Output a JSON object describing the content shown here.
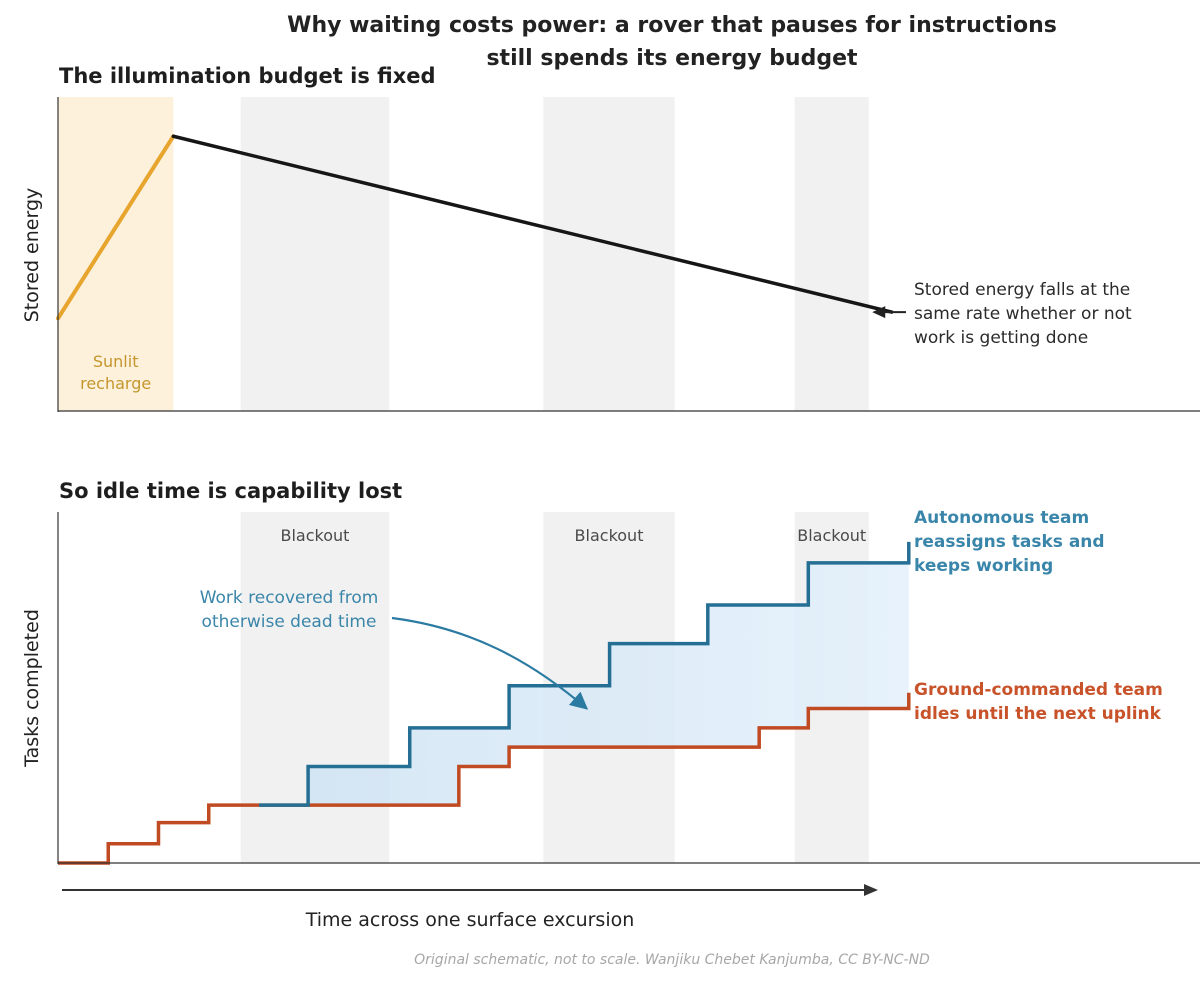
{
  "figure": {
    "title_line1": "Why waiting costs power: a rover that pauses for instructions",
    "title_line2": "still spends its energy budget",
    "credit": "Original schematic, not to scale. Wanjiku Chebet Kanjumba, CC BY-NC-ND",
    "x_axis_label": "Time across one surface excursion"
  },
  "colors": {
    "sunlit": "#e7a52d",
    "sunlit_band": "#fdf1dc",
    "energy_line": "#161616",
    "autonomous": "#256f94",
    "ground": "#c04a22",
    "gap_fill": "#d8e9f7",
    "blackout_band": "#eeeeee"
  },
  "chart_data": [
    {
      "type": "line",
      "panel_title": "The illumination budget is fixed",
      "ylabel": "Stored energy",
      "xlim": [
        0,
        100
      ],
      "ylim": [
        0,
        100
      ],
      "bands": [
        {
          "name": "Sunlit recharge",
          "x": [
            0,
            10.1
          ],
          "kind": "sunlit",
          "label_lines": [
            "Sunlit",
            "recharge"
          ]
        },
        {
          "name": "Blackout",
          "x": [
            16,
            29
          ],
          "kind": "blackout"
        },
        {
          "name": "Blackout",
          "x": [
            42.5,
            54
          ],
          "kind": "blackout"
        },
        {
          "name": "Blackout",
          "x": [
            64.5,
            71
          ],
          "kind": "blackout"
        }
      ],
      "series": [
        {
          "kind": "recharge",
          "x": [
            0,
            10.1
          ],
          "y": [
            29.5,
            87.5
          ]
        },
        {
          "kind": "drain",
          "x": [
            10.1,
            73
          ],
          "y": [
            87.5,
            31.5
          ]
        }
      ],
      "annotation": {
        "lines": [
          "Stored energy falls at the",
          "same rate whether or not",
          "work is getting done"
        ],
        "arrow_to": [
          71.3,
          31.5
        ]
      }
    },
    {
      "type": "line",
      "panel_title": "So idle time is capability lost",
      "ylabel": "Tasks completed",
      "xlim": [
        0,
        100
      ],
      "ylim": [
        0,
        100
      ],
      "bands": [
        {
          "name": "Blackout",
          "x": [
            16,
            29
          ],
          "kind": "blackout",
          "label": "Blackout"
        },
        {
          "name": "Blackout",
          "x": [
            42.5,
            54
          ],
          "kind": "blackout",
          "label": "Blackout"
        },
        {
          "name": "Blackout",
          "x": [
            64.5,
            71
          ],
          "kind": "blackout",
          "label": "Blackout"
        }
      ],
      "series": [
        {
          "name": "Autonomous team reassigns tasks and keeps working",
          "label_lines": [
            "Autonomous team",
            "reassigns tasks and",
            "keeps working"
          ],
          "kind": "autonomous",
          "x": [
            17.6,
            21.9,
            26.4,
            30.8,
            35.1,
            39.5,
            43.9,
            48.3,
            52.6,
            56.9,
            61.4,
            65.7,
            70.2,
            74.5
          ],
          "y": [
            16.5,
            27.5,
            27.5,
            38.5,
            38.5,
            50.5,
            50.5,
            62.5,
            62.5,
            73.5,
            73.5,
            85.5,
            85.5,
            91.5
          ]
        },
        {
          "name": "Ground-commanded team idles until the next uplink",
          "label_lines": [
            "Ground-commanded team",
            "idles until the next uplink"
          ],
          "kind": "ground",
          "x": [
            0,
            4.4,
            8.8,
            13.2,
            30.8,
            35.1,
            39.5,
            61.4,
            65.7,
            74.5
          ],
          "y": [
            0,
            5.5,
            11.5,
            16.5,
            16.5,
            27.5,
            33.0,
            38.5,
            44.0,
            48.5
          ]
        }
      ],
      "annotation": {
        "lines": [
          "Work recovered from",
          "otherwise dead time"
        ],
        "arrow_to": [
          46.3,
          44.0
        ]
      }
    }
  ]
}
